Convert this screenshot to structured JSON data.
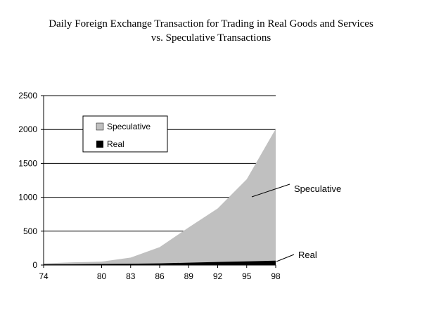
{
  "chart_data": {
    "type": "area",
    "title": [
      "Daily Foreign Exchange Transaction for Trading in Real Goods and Services",
      "vs. Speculative Transactions"
    ],
    "x": [
      "74",
      "77",
      "80",
      "83",
      "86",
      "89",
      "92",
      "95",
      "98"
    ],
    "xticks": [
      "74",
      "80",
      "83",
      "86",
      "89",
      "92",
      "95",
      "98"
    ],
    "yticks": [
      "0",
      "500",
      "1000",
      "1500",
      "2000",
      "2500"
    ],
    "ylim": [
      0,
      2500
    ],
    "stacked": true,
    "grid": true,
    "series": [
      {
        "name": "Real",
        "values": [
          10,
          12,
          15,
          20,
          25,
          35,
          45,
          55,
          65
        ],
        "color": "#000000"
      },
      {
        "name": "Speculative",
        "values": [
          15,
          28,
          35,
          90,
          240,
          520,
          790,
          1210,
          1945
        ],
        "color": "#c0c0c0"
      }
    ],
    "legend": {
      "placement": "top-left",
      "entries": [
        "Speculative",
        "Real"
      ]
    },
    "annotations": [
      "Speculative",
      "Real"
    ]
  }
}
